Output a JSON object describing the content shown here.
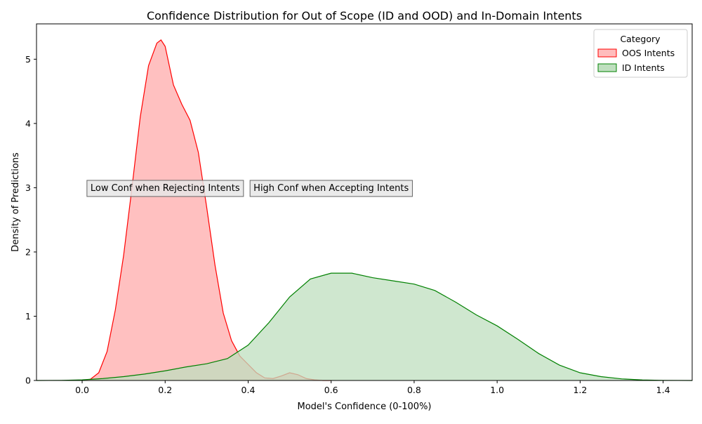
{
  "chart_data": {
    "type": "area",
    "title": "Confidence Distribution for Out of Scope (ID and OOD) and In-Domain Intents",
    "xlabel": "Model's Confidence (0-100%)",
    "ylabel": "Density of Predictions",
    "xlim": [
      -0.11,
      1.47
    ],
    "ylim": [
      0,
      5.55
    ],
    "xticks": [
      0.0,
      0.2,
      0.4,
      0.6,
      0.8,
      1.0,
      1.2,
      1.4
    ],
    "xtick_labels": [
      "0.0",
      "0.2",
      "0.4",
      "0.6",
      "0.8",
      "1.0",
      "1.2",
      "1.4"
    ],
    "yticks": [
      0,
      1,
      2,
      3,
      4,
      5
    ],
    "ytick_labels": [
      "0",
      "1",
      "2",
      "3",
      "4",
      "5"
    ],
    "legend": {
      "title": "Category",
      "position": "top-right"
    },
    "series": [
      {
        "name": "OOS Intents",
        "line_color": "#ff0000",
        "fill_color": "#ffbdbd",
        "x": [
          0.0,
          0.02,
          0.04,
          0.06,
          0.08,
          0.1,
          0.12,
          0.14,
          0.16,
          0.18,
          0.19,
          0.2,
          0.21,
          0.22,
          0.24,
          0.26,
          0.28,
          0.3,
          0.32,
          0.34,
          0.36,
          0.38,
          0.4,
          0.42,
          0.44,
          0.46,
          0.48,
          0.5,
          0.52,
          0.54,
          0.56,
          0.58,
          0.6
        ],
        "y": [
          0.0,
          0.02,
          0.12,
          0.45,
          1.1,
          1.95,
          3.0,
          4.1,
          4.9,
          5.25,
          5.3,
          5.2,
          4.9,
          4.6,
          4.3,
          4.05,
          3.55,
          2.7,
          1.8,
          1.05,
          0.62,
          0.38,
          0.25,
          0.12,
          0.04,
          0.03,
          0.07,
          0.12,
          0.09,
          0.03,
          0.01,
          0.0,
          0.0
        ]
      },
      {
        "name": "ID Intents",
        "line_color": "#008000",
        "fill_color": "#bfdfbf",
        "x": [
          -0.11,
          -0.05,
          0.0,
          0.05,
          0.1,
          0.15,
          0.2,
          0.25,
          0.3,
          0.35,
          0.4,
          0.45,
          0.5,
          0.55,
          0.6,
          0.65,
          0.7,
          0.75,
          0.8,
          0.85,
          0.9,
          0.95,
          1.0,
          1.05,
          1.1,
          1.15,
          1.2,
          1.25,
          1.3,
          1.35,
          1.4,
          1.47
        ],
        "y": [
          0.0,
          0.002,
          0.01,
          0.03,
          0.06,
          0.1,
          0.15,
          0.21,
          0.26,
          0.34,
          0.55,
          0.9,
          1.3,
          1.58,
          1.67,
          1.67,
          1.6,
          1.55,
          1.5,
          1.4,
          1.22,
          1.02,
          0.85,
          0.64,
          0.42,
          0.24,
          0.12,
          0.06,
          0.025,
          0.008,
          0.002,
          0.0
        ]
      }
    ],
    "annotations": [
      {
        "text": "Low Conf when Rejecting Intents",
        "x": 0.2,
        "y": 3.0
      },
      {
        "text": "High Conf when Accepting Intents",
        "x": 0.6,
        "y": 3.0
      }
    ]
  }
}
